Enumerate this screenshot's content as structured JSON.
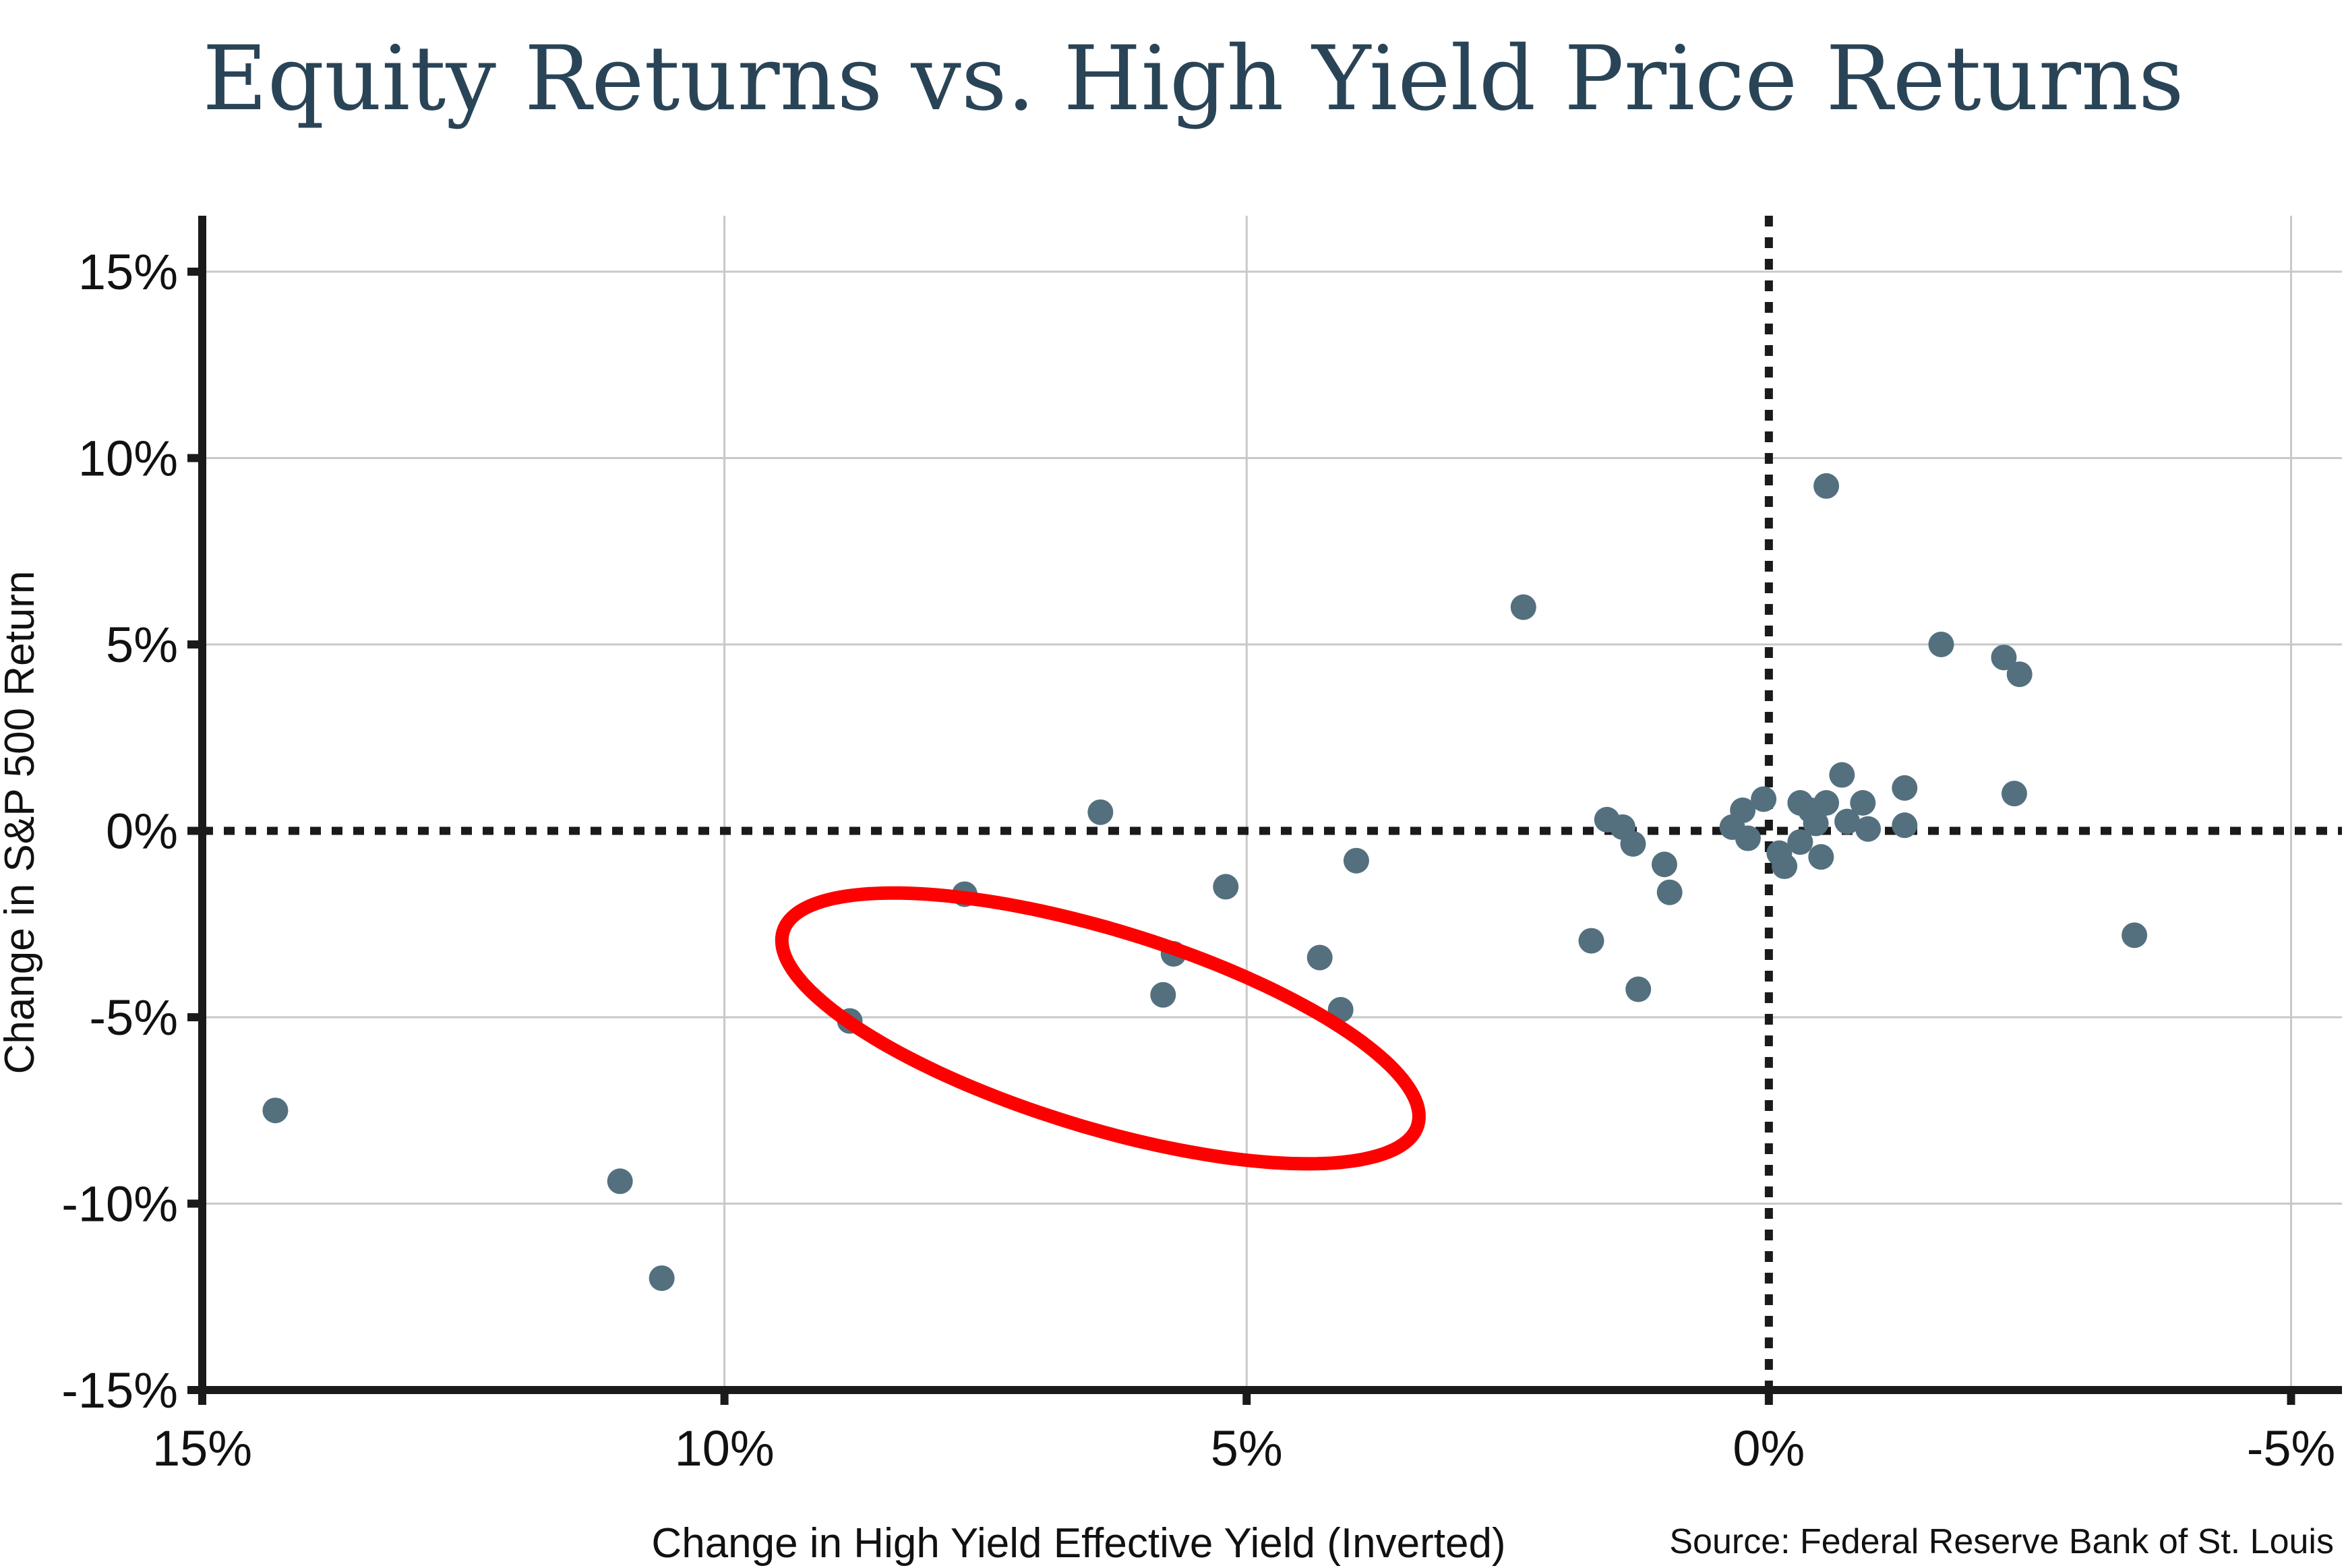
{
  "chart_data": {
    "type": "scatter",
    "title": "Equity Returns vs. High Yield Price Returns",
    "xlabel": "Change in High Yield Effective Yield (Inverted)",
    "ylabel": "Change in S&P 500 Return",
    "source": "Source: Federal Reserve Bank of St. Louis",
    "x_inverted": true,
    "xlim": [
      15,
      -5.1
    ],
    "ylim": [
      -15,
      16.5
    ],
    "x_ticks": [
      15,
      10,
      5,
      0,
      -5
    ],
    "x_tick_labels": [
      "15%",
      "10%",
      "5%",
      "0%",
      "-5%"
    ],
    "y_ticks": [
      15,
      10,
      5,
      0,
      -5,
      -10,
      -15
    ],
    "y_tick_labels": [
      "15%",
      "10%",
      "5%",
      "0%",
      "-5%",
      "-10%",
      "-15%"
    ],
    "grid": true,
    "zero_lines": "dotted",
    "point_color": "#54707f",
    "highlight_color": "#ff0000",
    "highlight": {
      "shape": "ellipse",
      "center": [
        6.4,
        -5.3
      ],
      "semi_major": 8.9,
      "semi_minor": 2.65,
      "rotation_deg": 17
    },
    "points": [
      {
        "x": 14.3,
        "y": -7.5
      },
      {
        "x": 11.0,
        "y": -9.4
      },
      {
        "x": 10.6,
        "y": -12.0
      },
      {
        "x": 8.8,
        "y": -5.1
      },
      {
        "x": 7.7,
        "y": -1.7
      },
      {
        "x": 6.4,
        "y": 0.5
      },
      {
        "x": 5.8,
        "y": -4.4
      },
      {
        "x": 5.7,
        "y": -3.3
      },
      {
        "x": 5.2,
        "y": -1.5
      },
      {
        "x": 4.3,
        "y": -3.4
      },
      {
        "x": 4.1,
        "y": -4.8
      },
      {
        "x": 3.95,
        "y": -0.8
      },
      {
        "x": 2.35,
        "y": 6.0
      },
      {
        "x": 1.7,
        "y": -2.95
      },
      {
        "x": 1.55,
        "y": 0.3
      },
      {
        "x": 1.4,
        "y": 0.1
      },
      {
        "x": 1.3,
        "y": -0.35
      },
      {
        "x": 1.25,
        "y": -4.25
      },
      {
        "x": 1.0,
        "y": -0.9
      },
      {
        "x": 0.95,
        "y": -1.65
      },
      {
        "x": 0.35,
        "y": 0.1
      },
      {
        "x": 0.25,
        "y": 0.55
      },
      {
        "x": 0.2,
        "y": -0.2
      },
      {
        "x": 0.05,
        "y": 0.85
      },
      {
        "x": -0.1,
        "y": -0.6
      },
      {
        "x": -0.15,
        "y": -0.95
      },
      {
        "x": -0.3,
        "y": 0.75
      },
      {
        "x": -0.3,
        "y": -0.3
      },
      {
        "x": -0.4,
        "y": 0.55
      },
      {
        "x": -0.45,
        "y": 0.2
      },
      {
        "x": -0.5,
        "y": -0.7
      },
      {
        "x": -0.55,
        "y": 9.25
      },
      {
        "x": -0.55,
        "y": 0.75
      },
      {
        "x": -0.7,
        "y": 1.5
      },
      {
        "x": -0.75,
        "y": 0.25
      },
      {
        "x": -0.9,
        "y": 0.75
      },
      {
        "x": -0.95,
        "y": 0.05
      },
      {
        "x": -1.3,
        "y": 1.15
      },
      {
        "x": -1.3,
        "y": 0.15
      },
      {
        "x": -1.65,
        "y": 5.0
      },
      {
        "x": -2.25,
        "y": 4.65
      },
      {
        "x": -2.35,
        "y": 1.0
      },
      {
        "x": -2.4,
        "y": 4.2
      },
      {
        "x": -3.5,
        "y": -2.8
      }
    ]
  }
}
